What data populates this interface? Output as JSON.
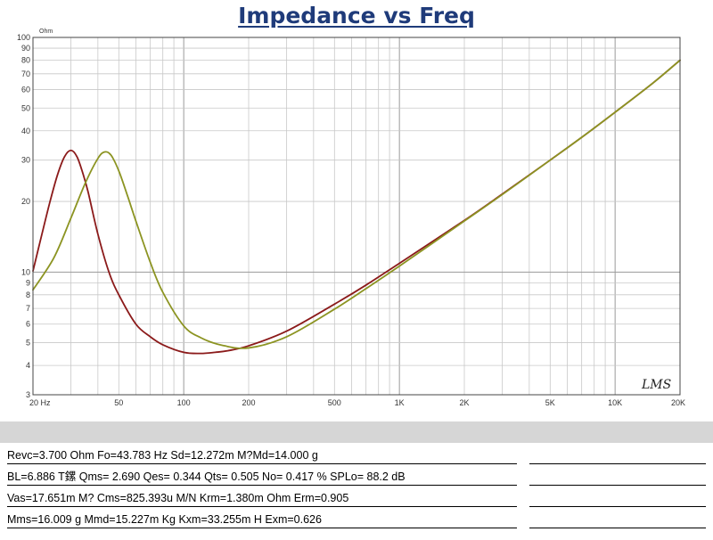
{
  "chart_data": {
    "type": "line",
    "title": "Impedance vs Freq",
    "ylabel": "Ohm",
    "x_scale": "log",
    "y_scale": "log",
    "xlim": [
      20,
      20000
    ],
    "ylim": [
      3,
      100
    ],
    "grid": true,
    "x_tick_labels": [
      {
        "value": 20,
        "label": "20 Hz"
      },
      {
        "value": 50,
        "label": "50"
      },
      {
        "value": 100,
        "label": "100"
      },
      {
        "value": 200,
        "label": "200"
      },
      {
        "value": 500,
        "label": "500"
      },
      {
        "value": 1000,
        "label": "1K"
      },
      {
        "value": 2000,
        "label": "2K"
      },
      {
        "value": 5000,
        "label": "5K"
      },
      {
        "value": 10000,
        "label": "10K"
      },
      {
        "value": 20000,
        "label": "20K"
      }
    ],
    "y_tick_labels": [
      {
        "value": 3,
        "label": "3"
      },
      {
        "value": 4,
        "label": "4"
      },
      {
        "value": 5,
        "label": "5"
      },
      {
        "value": 6,
        "label": "6"
      },
      {
        "value": 7,
        "label": "7"
      },
      {
        "value": 8,
        "label": "8"
      },
      {
        "value": 9,
        "label": "9"
      },
      {
        "value": 10,
        "label": "10"
      },
      {
        "value": 20,
        "label": "20"
      },
      {
        "value": 30,
        "label": "30"
      },
      {
        "value": 40,
        "label": "40"
      },
      {
        "value": 50,
        "label": "50"
      },
      {
        "value": 60,
        "label": "60"
      },
      {
        "value": 70,
        "label": "70"
      },
      {
        "value": 80,
        "label": "80"
      },
      {
        "value": 90,
        "label": "90"
      },
      {
        "value": 100,
        "label": "100"
      }
    ],
    "series": [
      {
        "color": "#8b1a1a",
        "x": [
          20,
          22,
          24,
          26,
          28,
          30,
          32,
          34,
          36,
          40,
          45,
          50,
          60,
          70,
          80,
          100,
          120,
          140,
          160,
          200,
          300,
          500,
          700,
          1000,
          2000,
          3000,
          5000,
          7000,
          10000,
          15000,
          20000
        ],
        "y": [
          10.1,
          14.5,
          20,
          26,
          31,
          33,
          31,
          26.5,
          22,
          14.5,
          10,
          8,
          6,
          5.3,
          4.9,
          4.55,
          4.5,
          4.55,
          4.62,
          4.85,
          5.6,
          7.3,
          8.8,
          10.9,
          16.6,
          21.5,
          30,
          37.5,
          48,
          64,
          80
        ]
      },
      {
        "color": "#8c9422",
        "x": [
          20,
          25,
          30,
          35,
          40,
          43,
          46,
          50,
          55,
          60,
          70,
          80,
          100,
          120,
          150,
          200,
          300,
          500,
          700,
          1000,
          2000,
          3000,
          5000,
          7000,
          10000,
          15000,
          20000
        ],
        "y": [
          8.4,
          11.5,
          17,
          24,
          30.5,
          32.5,
          31.5,
          27,
          21,
          16.5,
          11,
          8.2,
          5.9,
          5.25,
          4.88,
          4.75,
          5.3,
          6.95,
          8.5,
          10.6,
          16.5,
          21.4,
          30,
          37.5,
          48,
          64,
          80
        ]
      }
    ],
    "annotations": [
      "LMS"
    ]
  },
  "parameters": [
    "Revc=3.700 Ohm  Fo=43.783 Hz  Sd=12.272m M?Md=14.000 g",
    "BL=6.886 T鏍  Qms= 2.690  Qes= 0.344  Qts= 0.505  No= 0.417 %  SPLo= 88.2 dB",
    "Vas=17.651m M? Cms=825.393u M/N  Krm=1.380m Ohm  Erm=0.905",
    "Mms=16.009 g  Mmd=15.227m Kg  Kxm=33.255m H  Exm=0.626"
  ]
}
